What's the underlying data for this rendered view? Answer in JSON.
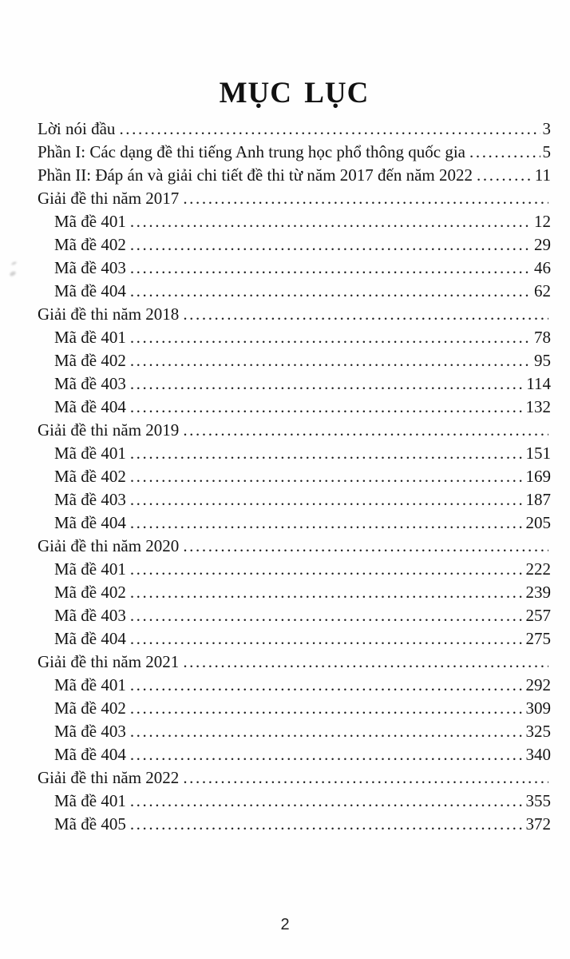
{
  "page": {
    "title": "MỤC LỤC",
    "footer_page_number": "2"
  },
  "toc": {
    "entries": [
      {
        "label": "Lời nói đầu",
        "page": "3",
        "indent": 0
      },
      {
        "label": "Phần I: Các dạng đề thi tiếng Anh trung học phổ thông quốc gia",
        "page": "5",
        "indent": 0
      },
      {
        "label": "Phần II: Đáp án và giải chi tiết đề thi từ năm 2017 đến năm 2022",
        "page": "11",
        "indent": 0
      },
      {
        "label": "Giải đề thi năm 2017",
        "page": "",
        "indent": 0
      },
      {
        "label": "Mã đề 401",
        "page": "12",
        "indent": 1
      },
      {
        "label": "Mã đề 402",
        "page": "29",
        "indent": 1
      },
      {
        "label": "Mã đề 403",
        "page": "46",
        "indent": 1
      },
      {
        "label": "Mã đề 404",
        "page": "62",
        "indent": 1
      },
      {
        "label": "Giải đề thi năm 2018",
        "page": "",
        "indent": 0
      },
      {
        "label": "Mã đề 401",
        "page": "78",
        "indent": 1
      },
      {
        "label": "Mã đề 402",
        "page": "95",
        "indent": 1
      },
      {
        "label": "Mã đề 403",
        "page": "114",
        "indent": 1
      },
      {
        "label": "Mã đề 404",
        "page": "132",
        "indent": 1
      },
      {
        "label": "Giải đề thi năm 2019",
        "page": "",
        "indent": 0
      },
      {
        "label": "Mã đề 401",
        "page": "151",
        "indent": 1
      },
      {
        "label": "Mã đề 402",
        "page": "169",
        "indent": 1
      },
      {
        "label": "Mã đề 403",
        "page": "187",
        "indent": 1
      },
      {
        "label": "Mã đề 404",
        "page": "205",
        "indent": 1
      },
      {
        "label": "Giải đề thi năm 2020",
        "page": "",
        "indent": 0
      },
      {
        "label": "Mã đề 401",
        "page": "222",
        "indent": 1
      },
      {
        "label": "Mã đề 402",
        "page": "239",
        "indent": 1
      },
      {
        "label": "Mã đề 403",
        "page": "257",
        "indent": 1
      },
      {
        "label": "Mã đề 404",
        "page": "275",
        "indent": 1
      },
      {
        "label": "Giải đề thi năm 2021",
        "page": "",
        "indent": 0
      },
      {
        "label": "Mã đề 401",
        "page": "292",
        "indent": 1
      },
      {
        "label": "Mã đề 402",
        "page": "309",
        "indent": 1
      },
      {
        "label": "Mã đề 403",
        "page": "325",
        "indent": 1
      },
      {
        "label": "Mã đề 404",
        "page": "340",
        "indent": 1
      },
      {
        "label": "Giải đề thi năm 2022",
        "page": "",
        "indent": 0
      },
      {
        "label": "Mã đề 401",
        "page": "355",
        "indent": 1
      },
      {
        "label": "Mã đề 405",
        "page": "372",
        "indent": 1
      }
    ]
  }
}
